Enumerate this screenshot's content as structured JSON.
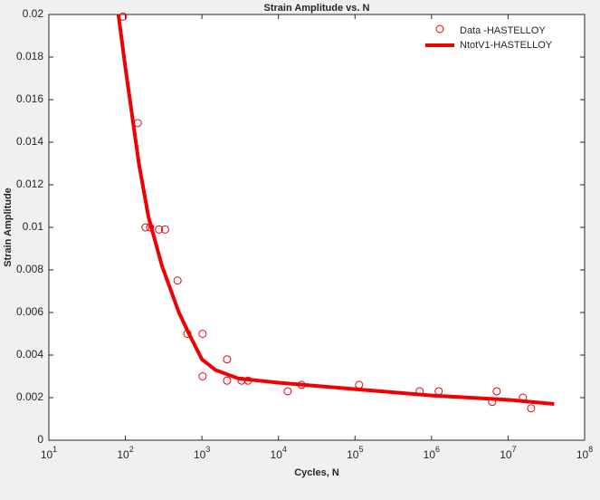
{
  "chart_data": {
    "type": "scatter-line",
    "title": "Strain Amplitude vs. N",
    "x_label": "Cycles, N",
    "y_label": "Strain Amplitude",
    "xscale": "log",
    "xlim": [
      10,
      100000000
    ],
    "ylim": [
      0,
      0.02
    ],
    "xticks": [
      {
        "value": 10,
        "label": "10^1"
      },
      {
        "value": 100,
        "label": "10^2"
      },
      {
        "value": 1000,
        "label": "10^3"
      },
      {
        "value": 10000,
        "label": "10^4"
      },
      {
        "value": 100000,
        "label": "10^5"
      },
      {
        "value": 1000000,
        "label": "10^6"
      },
      {
        "value": 10000000,
        "label": "10^7"
      },
      {
        "value": 100000000,
        "label": "10^8"
      }
    ],
    "yticks": [
      0,
      0.002,
      0.004,
      0.006,
      0.008,
      0.01,
      0.012,
      0.014,
      0.016,
      0.018,
      0.02
    ],
    "legend": "northeast",
    "grid": false,
    "series": [
      {
        "name": "Data -HASTELLOY",
        "kind": "markers",
        "color": "#e8000b",
        "x": [
          93,
          145,
          183,
          210,
          275,
          330,
          480,
          645,
          1020,
          1020,
          2130,
          2130,
          3300,
          4000,
          13200,
          20000,
          113000,
          700000,
          1240000,
          6200000,
          7100000,
          15600000,
          20000000
        ],
        "values": [
          0.0199,
          0.0149,
          0.01,
          0.01,
          0.0099,
          0.0099,
          0.0075,
          0.005,
          0.005,
          0.003,
          0.0038,
          0.0028,
          0.0028,
          0.0028,
          0.0023,
          0.0026,
          0.0026,
          0.0023,
          0.0023,
          0.0018,
          0.0023,
          0.002,
          0.0015
        ]
      },
      {
        "name": "NtotV1-HASTELLOY",
        "kind": "line",
        "color": "#f00000",
        "x": [
          81,
          100,
          150,
          200,
          300,
          500,
          700,
          1000,
          1500,
          3000,
          10000,
          100000,
          1000000,
          10000000,
          40000000
        ],
        "values": [
          0.02,
          0.0175,
          0.013,
          0.0105,
          0.0082,
          0.006,
          0.0049,
          0.0038,
          0.0033,
          0.0029,
          0.0027,
          0.0024,
          0.0021,
          0.0019,
          0.0017
        ]
      }
    ]
  }
}
